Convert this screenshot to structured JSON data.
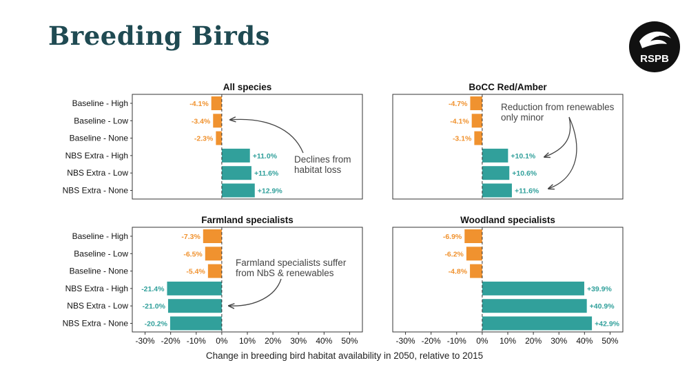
{
  "header": {
    "title": "Breeding Birds",
    "logo_text": "RSPB"
  },
  "colors": {
    "baseline": "#f0922f",
    "nbs": "#31a09b",
    "title": "#1f4a52",
    "arrow": "#444444"
  },
  "chart_data": {
    "type": "bar",
    "orientation": "horizontal",
    "xlabel": "Change in breeding bird habitat availability in 2050, relative to 2015",
    "xlim": [
      -35,
      55
    ],
    "xticks": [
      -30,
      -20,
      -10,
      0,
      10,
      20,
      30,
      40,
      50
    ],
    "xtick_labels": [
      "-30%",
      "-20%",
      "-10%",
      "0%",
      "10%",
      "20%",
      "30%",
      "40%",
      "50%"
    ],
    "categories": [
      "Baseline - High",
      "Baseline - Low",
      "Baseline - None",
      "NBS Extra - High",
      "NBS Extra - Low",
      "NBS Extra - None"
    ],
    "panels": [
      {
        "title": "All species",
        "values": [
          -4.1,
          -3.4,
          -2.3,
          11.0,
          11.6,
          12.9
        ],
        "labels": [
          "-4.1%",
          "-3.4%",
          "-2.3%",
          "+11.0%",
          "+11.6%",
          "+12.9%"
        ],
        "annotation": "Declines from\nhabitat loss"
      },
      {
        "title": "BoCC Red/Amber",
        "values": [
          -4.7,
          -4.1,
          -3.1,
          10.1,
          10.6,
          11.6
        ],
        "labels": [
          "-4.7%",
          "-4.1%",
          "-3.1%",
          "+10.1%",
          "+10.6%",
          "+11.6%"
        ],
        "annotation": "Reduction from renewables\nonly minor"
      },
      {
        "title": "Farmland specialists",
        "values": [
          -7.3,
          -6.5,
          -5.4,
          -21.4,
          -21.0,
          -20.2
        ],
        "labels": [
          "-7.3%",
          "-6.5%",
          "-5.4%",
          "-21.4%",
          "-21.0%",
          "-20.2%"
        ],
        "annotation": "Farmland specialists suffer\nfrom NbS & renewables"
      },
      {
        "title": "Woodland specialists",
        "values": [
          -6.9,
          -6.2,
          -4.8,
          39.9,
          40.9,
          42.9
        ],
        "labels": [
          "-6.9%",
          "-6.2%",
          "-4.8%",
          "+39.9%",
          "+40.9%",
          "+42.9%"
        ],
        "annotation": ""
      }
    ],
    "grid": false,
    "legend": "none"
  }
}
